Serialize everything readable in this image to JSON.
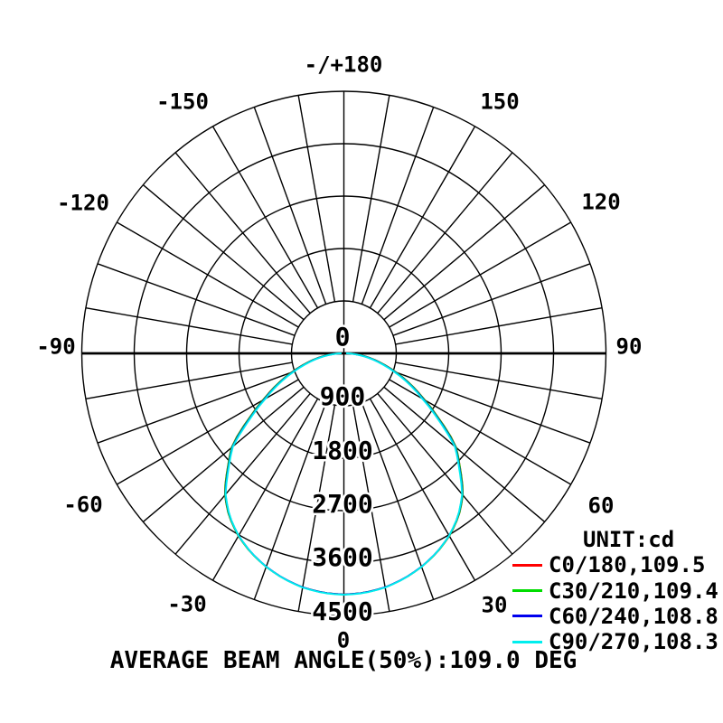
{
  "chart_data": {
    "type": "polar",
    "subtype": "photometric_intensity_distribution",
    "background": "#ffffff",
    "grid_color": "#000000",
    "unit_label": "UNIT:cd",
    "caption": "AVERAGE BEAM ANGLE(50%):109.0 DEG",
    "average_beam_angle_50pct_deg": 109.0,
    "angular_axis": {
      "zero_direction": "down",
      "grid_step_deg": 10,
      "labels": [
        {
          "angle": 180,
          "text": "-/+180"
        },
        {
          "angle": -150,
          "text": "-150"
        },
        {
          "angle": 150,
          "text": "150"
        },
        {
          "angle": -120,
          "text": "-120"
        },
        {
          "angle": 120,
          "text": "120"
        },
        {
          "angle": -90,
          "text": "-90"
        },
        {
          "angle": 90,
          "text": "90"
        },
        {
          "angle": -60,
          "text": "-60"
        },
        {
          "angle": 60,
          "text": "60"
        },
        {
          "angle": -30,
          "text": "-30"
        },
        {
          "angle": 30,
          "text": "30"
        },
        {
          "angle": 0,
          "text": "0"
        }
      ]
    },
    "radial_axis": {
      "unit": "cd",
      "min": 0,
      "max": 4500,
      "ring_step": 900,
      "tick_labels": [
        "0",
        "900",
        "1800",
        "2700",
        "3600",
        "4500"
      ]
    },
    "series": [
      {
        "legend_label": "C0/180,109.5",
        "plane": "C0/180",
        "beam_angle_50pct_deg": 109.5,
        "peak_cd": 4140,
        "color": "#ff0000"
      },
      {
        "legend_label": "C30/210,109.4",
        "plane": "C30/210",
        "beam_angle_50pct_deg": 109.4,
        "peak_cd": 4140,
        "color": "#00dd00"
      },
      {
        "legend_label": "C60/240,108.8",
        "plane": "C60/240",
        "beam_angle_50pct_deg": 108.8,
        "peak_cd": 4140,
        "color": "#0000ee"
      },
      {
        "legend_label": "C90/270,108.3",
        "plane": "C90/270",
        "beam_angle_50pct_deg": 108.3,
        "peak_cd": 4145,
        "color": "#00eeee"
      }
    ],
    "intensity_profile": {
      "reference_beam_angle_deg": 108.3,
      "angles_deg": [
        0,
        5,
        10,
        15,
        20,
        25,
        30,
        35,
        40,
        45,
        50,
        55,
        60,
        65,
        70,
        75,
        80,
        85,
        90
      ],
      "relative_intensity": [
        1.0,
        0.996,
        0.985,
        0.966,
        0.941,
        0.91,
        0.872,
        0.824,
        0.762,
        0.675,
        0.6,
        0.475,
        0.375,
        0.295,
        0.22,
        0.155,
        0.1,
        0.05,
        0.012
      ]
    }
  }
}
